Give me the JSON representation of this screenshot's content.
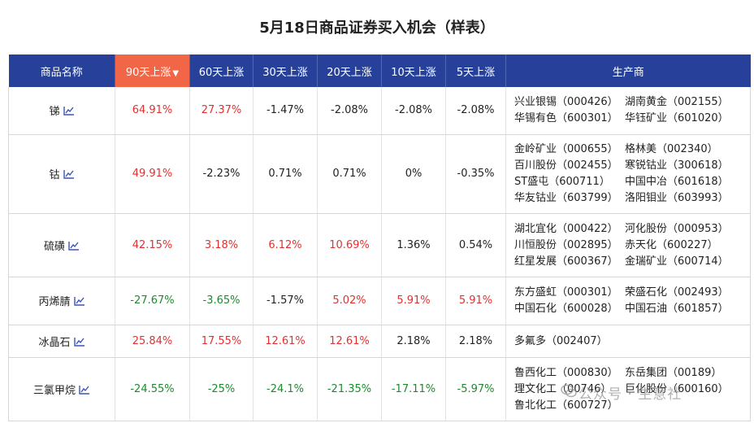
{
  "title": "5月18日商品证券买入机会（样表）",
  "headers": [
    "商品名称",
    "90天上涨",
    "60天上涨",
    "30天上涨",
    "20天上涨",
    "10天上涨",
    "5天上涨",
    "生产商"
  ],
  "sort_arrow": "▼",
  "colors": {
    "header_bg": "#27419a",
    "active_header_bg": "#f06646",
    "up": "#e23030",
    "down": "#1e8a2e"
  },
  "rows": [
    {
      "name": "锑",
      "values": [
        "64.91%",
        "27.37%",
        "-1.47%",
        "-2.08%",
        "-2.08%",
        "-2.08%"
      ],
      "trend": [
        "up",
        "up",
        "flat",
        "flat",
        "flat",
        "flat"
      ],
      "producers": [
        "兴业银锡（000426）",
        "湖南黄金（002155）",
        "华锡有色（600301）",
        "华钰矿业（601020）"
      ]
    },
    {
      "name": "钴",
      "values": [
        "49.91%",
        "-2.23%",
        "0.71%",
        "0.71%",
        "0%",
        "-0.35%"
      ],
      "trend": [
        "up",
        "flat",
        "flat",
        "flat",
        "flat",
        "flat"
      ],
      "producers": [
        "金岭矿业（000655）",
        "格林美（002340）",
        "百川股份（002455）",
        "寒锐钴业（300618）",
        "ST盛屯（600711）",
        "中国中冶（601618）",
        "华友钴业（603799）",
        "洛阳钼业（603993）"
      ]
    },
    {
      "name": "硫磺",
      "values": [
        "42.15%",
        "3.18%",
        "6.12%",
        "10.69%",
        "1.36%",
        "0.54%"
      ],
      "trend": [
        "up",
        "up",
        "up",
        "up",
        "flat",
        "flat"
      ],
      "producers": [
        "湖北宜化（000422）",
        "河化股份（000953）",
        "川恒股份（002895）",
        "赤天化（600227）",
        "红星发展（600367）",
        "金瑞矿业（600714）"
      ]
    },
    {
      "name": "丙烯腈",
      "values": [
        "-27.67%",
        "-3.65%",
        "-1.57%",
        "5.02%",
        "5.91%",
        "5.91%"
      ],
      "trend": [
        "down",
        "down",
        "flat",
        "up",
        "up",
        "up"
      ],
      "producers": [
        "东方盛虹（000301）",
        "荣盛石化（002493）",
        "中国石化（600028）",
        "中国石油（601857）"
      ]
    },
    {
      "name": "冰晶石",
      "values": [
        "25.84%",
        "17.55%",
        "12.61%",
        "12.61%",
        "2.18%",
        "2.18%"
      ],
      "trend": [
        "up",
        "up",
        "up",
        "up",
        "flat",
        "flat"
      ],
      "producers": [
        "多氟多（002407）"
      ]
    },
    {
      "name": "三氯甲烷",
      "values": [
        "-24.55%",
        "-25%",
        "-24.1%",
        "-21.35%",
        "-17.11%",
        "-5.97%"
      ],
      "trend": [
        "down",
        "down",
        "down",
        "down",
        "down",
        "down"
      ],
      "producers": [
        "鲁西化工（000830）",
        "东岳集团（00189）",
        "理文化工（00746）",
        "巨化股份（600160）",
        "鲁北化工（600727）"
      ]
    }
  ],
  "watermark": "公众号 · 生意社"
}
